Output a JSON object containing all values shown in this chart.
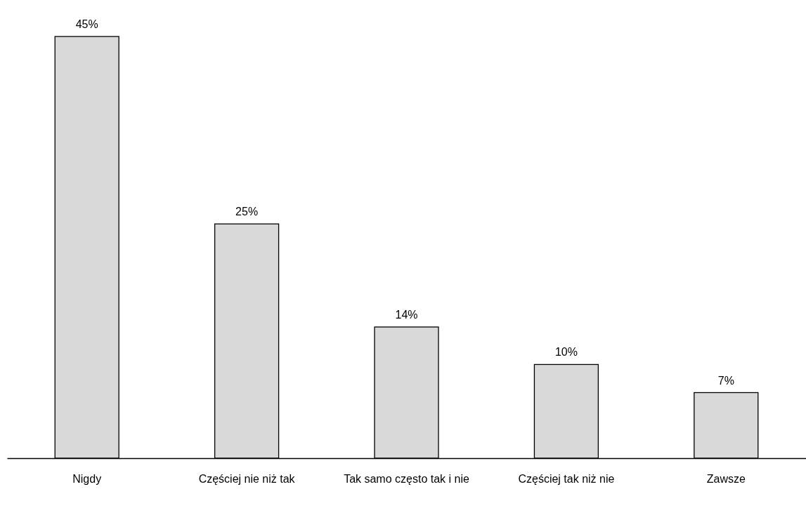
{
  "chart_data": {
    "type": "bar",
    "categories": [
      "Nigdy",
      "Częściej nie niż tak",
      "Tak samo często tak i nie",
      "Częściej tak niż nie",
      "Zawsze"
    ],
    "values": [
      45,
      25,
      14,
      10,
      7
    ],
    "color": "#d9d9d9",
    "value_labels": [
      "45%",
      "25%",
      "14%",
      "10%",
      "7%"
    ]
  }
}
